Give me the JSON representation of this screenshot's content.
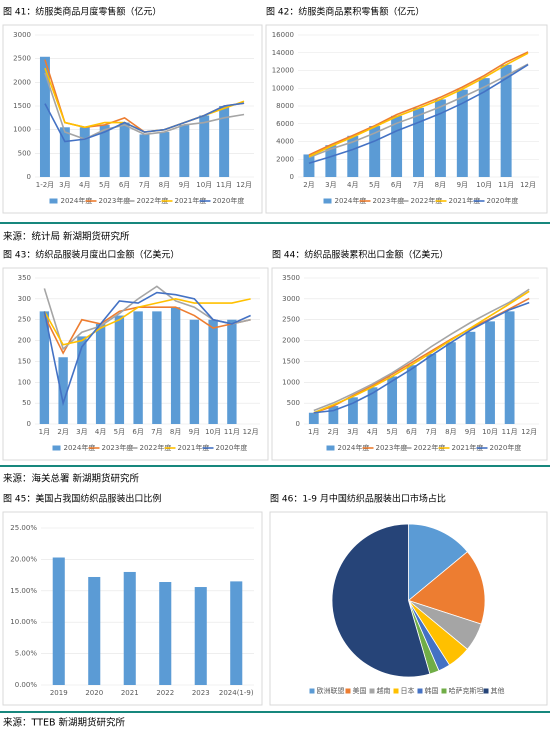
{
  "chart_data": [
    {
      "type": "combo",
      "title": "图 41：纺服类商品月度零售额（亿元）",
      "categories": [
        "1-2月",
        "3月",
        "4月",
        "5月",
        "6月",
        "7月",
        "8月",
        "9月",
        "10月",
        "11月",
        "12月"
      ],
      "ylim": [
        0,
        3000
      ],
      "yticks": [
        0,
        500,
        1000,
        1500,
        2000,
        2500,
        3000
      ],
      "grid": true,
      "series": [
        {
          "name": "2024年度",
          "type": "bar",
          "color": "#5b9bd5",
          "values": [
            2540,
            1050,
            1050,
            1100,
            1150,
            900,
            950,
            1100,
            1300,
            1500,
            null
          ]
        },
        {
          "name": "2023年度",
          "type": "line",
          "color": "#ed7d31",
          "values": [
            2480,
            1150,
            1050,
            1100,
            1250,
            950,
            1000,
            1150,
            1300,
            1500,
            1560
          ]
        },
        {
          "name": "2022年度",
          "type": "line",
          "color": "#a5a5a5",
          "values": [
            2200,
            950,
            800,
            1000,
            1100,
            900,
            950,
            1100,
            1150,
            1250,
            1320
          ]
        },
        {
          "name": "2021年度",
          "type": "line",
          "color": "#ffc000",
          "values": [
            2300,
            1150,
            1050,
            1150,
            1150,
            950,
            1000,
            1150,
            1300,
            1450,
            1600
          ]
        },
        {
          "name": "2020年度",
          "type": "line",
          "color": "#4472c4",
          "values": [
            1550,
            750,
            800,
            950,
            1150,
            950,
            1000,
            1150,
            1300,
            1500,
            1560
          ]
        }
      ]
    },
    {
      "type": "combo",
      "title": "图 42：纺服类商品累积零售额（亿元）",
      "categories": [
        "2月",
        "3月",
        "4月",
        "5月",
        "6月",
        "7月",
        "8月",
        "9月",
        "10月",
        "11月",
        "12月"
      ],
      "ylim": [
        0,
        16000
      ],
      "yticks": [
        0,
        2000,
        4000,
        6000,
        8000,
        10000,
        12000,
        14000,
        16000
      ],
      "grid": true,
      "series": [
        {
          "name": "2024年度",
          "type": "bar",
          "color": "#5b9bd5",
          "values": [
            2540,
            3590,
            4640,
            5740,
            6890,
            7790,
            8740,
            9840,
            11140,
            12640,
            null
          ]
        },
        {
          "name": "2023年度",
          "type": "line",
          "color": "#ed7d31",
          "values": [
            2480,
            3630,
            4680,
            5780,
            7030,
            7980,
            8980,
            10130,
            11430,
            12930,
            14090
          ]
        },
        {
          "name": "2022年度",
          "type": "line",
          "color": "#a5a5a5",
          "values": [
            2200,
            3150,
            3950,
            4950,
            6050,
            6950,
            7900,
            9000,
            10150,
            11400,
            12720
          ]
        },
        {
          "name": "2021年度",
          "type": "line",
          "color": "#ffc000",
          "values": [
            2300,
            3450,
            4500,
            5650,
            6800,
            7750,
            8750,
            9900,
            11200,
            12650,
            13950
          ]
        },
        {
          "name": "2020年度",
          "type": "line",
          "color": "#4472c4",
          "values": [
            1550,
            2300,
            3100,
            4050,
            5200,
            6150,
            7150,
            8300,
            9600,
            11100,
            12660
          ]
        }
      ]
    },
    {
      "type": "combo",
      "title": "图 43：纺织品服装月度出口金额（亿美元）",
      "categories": [
        "1月",
        "2月",
        "3月",
        "4月",
        "5月",
        "6月",
        "7月",
        "8月",
        "9月",
        "10月",
        "11月",
        "12月"
      ],
      "ylim": [
        0,
        350
      ],
      "yticks": [
        0,
        50,
        100,
        150,
        200,
        250,
        300,
        350
      ],
      "grid": true,
      "series": [
        {
          "name": "2024年度",
          "type": "bar",
          "color": "#5b9bd5",
          "values": [
            270,
            160,
            210,
            240,
            260,
            270,
            270,
            280,
            250,
            250,
            250,
            null
          ]
        },
        {
          "name": "2023年度",
          "type": "line",
          "color": "#ed7d31",
          "values": [
            260,
            170,
            250,
            240,
            270,
            280,
            280,
            280,
            260,
            230,
            240,
            250
          ]
        },
        {
          "name": "2022年度",
          "type": "line",
          "color": "#a5a5a5",
          "values": [
            325,
            180,
            220,
            235,
            265,
            300,
            330,
            295,
            280,
            250,
            240,
            250
          ]
        },
        {
          "name": "2021年度",
          "type": "line",
          "color": "#ffc000",
          "values": [
            270,
            190,
            200,
            230,
            250,
            280,
            290,
            300,
            290,
            290,
            290,
            300
          ]
        },
        {
          "name": "2020年度",
          "type": "line",
          "color": "#4472c4",
          "values": [
            270,
            50,
            185,
            240,
            295,
            290,
            315,
            310,
            300,
            250,
            240,
            260
          ]
        }
      ]
    },
    {
      "type": "combo",
      "title": "图 44：纺织品服装累积出口金额（亿美元）",
      "categories": [
        "1月",
        "2月",
        "3月",
        "4月",
        "5月",
        "6月",
        "7月",
        "8月",
        "9月",
        "10月",
        "11月",
        "12月"
      ],
      "ylim": [
        0,
        3500
      ],
      "yticks": [
        0,
        500,
        1000,
        1500,
        2000,
        2500,
        3000,
        3500
      ],
      "grid": true,
      "series": [
        {
          "name": "2024年度",
          "type": "bar",
          "color": "#5b9bd5",
          "values": [
            270,
            430,
            640,
            880,
            1140,
            1410,
            1680,
            1960,
            2210,
            2460,
            2700,
            null
          ]
        },
        {
          "name": "2023年度",
          "type": "line",
          "color": "#ed7d31",
          "values": [
            260,
            430,
            680,
            920,
            1190,
            1470,
            1750,
            2030,
            2290,
            2520,
            2760,
            3010
          ]
        },
        {
          "name": "2022年度",
          "type": "line",
          "color": "#a5a5a5",
          "values": [
            325,
            505,
            725,
            960,
            1225,
            1525,
            1855,
            2150,
            2430,
            2680,
            2920,
            3230
          ]
        },
        {
          "name": "2021年度",
          "type": "line",
          "color": "#ffc000",
          "values": [
            270,
            460,
            660,
            890,
            1140,
            1420,
            1710,
            2010,
            2300,
            2590,
            2880,
            3180
          ]
        },
        {
          "name": "2020年度",
          "type": "line",
          "color": "#4472c4",
          "values": [
            270,
            320,
            500,
            740,
            1030,
            1320,
            1640,
            1950,
            2250,
            2500,
            2740,
            2910
          ]
        }
      ]
    },
    {
      "type": "bar",
      "title": "图 45：美国占我国纺织品服装出口比例",
      "categories": [
        "2019",
        "2020",
        "2021",
        "2022",
        "2023",
        "2024(1-9)"
      ],
      "values": [
        20.3,
        17.2,
        18.0,
        16.4,
        15.6,
        16.5
      ],
      "color": "#5b9bd5",
      "ylim": [
        0,
        25
      ],
      "yticks": [
        {
          "value": 0,
          "label": "0.00%"
        },
        {
          "value": 5,
          "label": "5.00%"
        },
        {
          "value": 10,
          "label": "10.00%"
        },
        {
          "value": 15,
          "label": "15.00%"
        },
        {
          "value": 20,
          "label": "20.00%"
        },
        {
          "value": 25,
          "label": "25.00%"
        }
      ],
      "grid": true
    },
    {
      "type": "pie",
      "title": "图 46：1-9 月中国纺织品服装出口市场占比",
      "categories": [
        "欧洲联盟",
        "美国",
        "越南",
        "日本",
        "韩国",
        "哈萨克斯坦",
        "其他"
      ],
      "values": [
        14,
        16,
        6,
        5,
        2.5,
        2,
        54.5
      ],
      "colors": [
        "#5b9bd5",
        "#ed7d31",
        "#a5a5a5",
        "#ffc000",
        "#4472c4",
        "#70ad47",
        "#264478"
      ]
    }
  ],
  "sources": [
    "来源：统计局 新湖期货研究所",
    "来源：海关总署 新湖期货研究所",
    "来源：TTEB 新湖期货研究所"
  ]
}
